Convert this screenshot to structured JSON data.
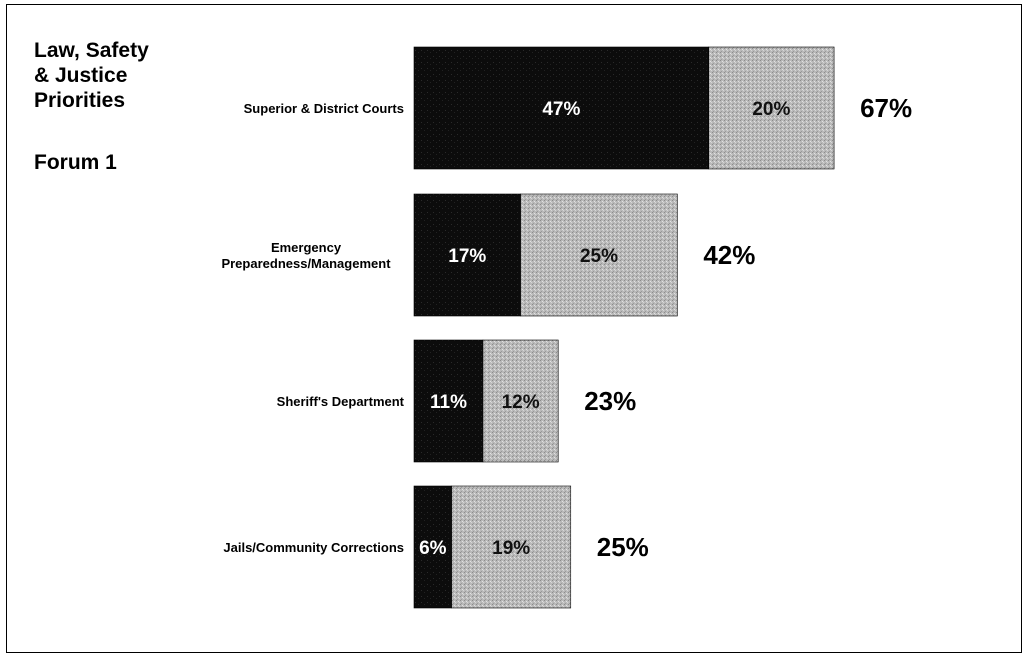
{
  "chart_data": {
    "type": "bar",
    "orientation": "horizontal",
    "stacked": true,
    "title": "Law, Safety & Justice Priorities",
    "subtitle": "Forum 1",
    "categories": [
      "Superior & District Courts",
      [
        "Emergency",
        "Preparedness/Management"
      ],
      "Sheriff's Department",
      "Jails/Community Corrections"
    ],
    "series": [
      {
        "values": [
          47,
          17,
          11,
          6
        ],
        "labels": [
          "47%",
          "17%",
          "11%",
          "6%"
        ],
        "color": "#0a0a0a"
      },
      {
        "values": [
          20,
          25,
          12,
          19
        ],
        "labels": [
          "20%",
          "25%",
          "12%",
          "19%"
        ],
        "color": "#b4b4b4"
      }
    ],
    "totals": [
      "67%",
      "42%",
      "23%",
      "25%"
    ],
    "legend": "none",
    "grid": false
  }
}
